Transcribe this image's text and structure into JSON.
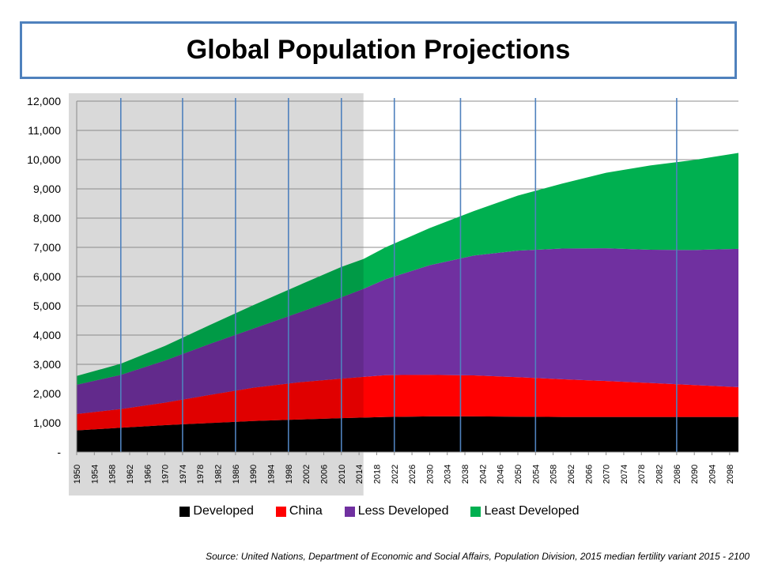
{
  "title": "Global Population Projections",
  "source": "Source: United Nations, Department of Economic and Social Affairs, Population Division, 2015 median fertility variant 2015  - 2100",
  "colors": {
    "developed": "#000000",
    "china": "#ff0000",
    "less_developed": "#7030a0",
    "least_developed": "#00b050",
    "title_border": "#4f81bd",
    "vertical_lines": "#4f81bd",
    "historic_shade": "#d9d9d9"
  },
  "chart_data": {
    "type": "area",
    "stacked": true,
    "x_start": 1950,
    "x_end": 2100,
    "x_tick_labels": [
      "1950",
      "1954",
      "1958",
      "1962",
      "1966",
      "1970",
      "1974",
      "1978",
      "1982",
      "1986",
      "1990",
      "1994",
      "1998",
      "2002",
      "2006",
      "2010",
      "2014",
      "2018",
      "2022",
      "2026",
      "2030",
      "2034",
      "2038",
      "2042",
      "2046",
      "2050",
      "2054",
      "2058",
      "2062",
      "2066",
      "2070",
      "2074",
      "2078",
      "2082",
      "2086",
      "2090",
      "2094",
      "2098"
    ],
    "y_tick_labels": [
      "-",
      "1,000",
      "2,000",
      "3,000",
      "4,000",
      "5,000",
      "6,000",
      "7,000",
      "8,000",
      "9,000",
      "10,000",
      "11,000",
      "12,000"
    ],
    "ylim": [
      0,
      12000
    ],
    "grid": "horizontal",
    "historic_shading": [
      1950,
      2015
    ],
    "vertical_markers": [
      1960,
      1974,
      1986,
      1998,
      2010,
      2022,
      2037,
      2054,
      2086
    ],
    "legend_position": "bottom",
    "x": [
      1950,
      1960,
      1970,
      1980,
      1990,
      2000,
      2010,
      2015,
      2020,
      2030,
      2040,
      2050,
      2060,
      2070,
      2080,
      2090,
      2100
    ],
    "series": [
      {
        "name": "Developed",
        "color_key": "developed",
        "values": [
          740,
          830,
          920,
          990,
          1060,
          1110,
          1160,
          1180,
          1200,
          1220,
          1220,
          1210,
          1200,
          1200,
          1200,
          1200,
          1200
        ]
      },
      {
        "name": "China",
        "color_key": "china",
        "values": [
          560,
          640,
          770,
          960,
          1140,
          1270,
          1350,
          1390,
          1430,
          1420,
          1400,
          1350,
          1290,
          1230,
          1160,
          1090,
          1020
        ]
      },
      {
        "name": "Less Developed",
        "color_key": "less_developed",
        "values": [
          1000,
          1170,
          1440,
          1740,
          2020,
          2370,
          2780,
          3010,
          3280,
          3750,
          4100,
          4330,
          4470,
          4540,
          4560,
          4620,
          4730
        ]
      },
      {
        "name": "Least Developed",
        "color_key": "least_developed",
        "values": [
          300,
          380,
          500,
          640,
          800,
          930,
          1040,
          1020,
          1090,
          1270,
          1520,
          1880,
          2220,
          2580,
          2880,
          3080,
          3280
        ]
      }
    ]
  }
}
